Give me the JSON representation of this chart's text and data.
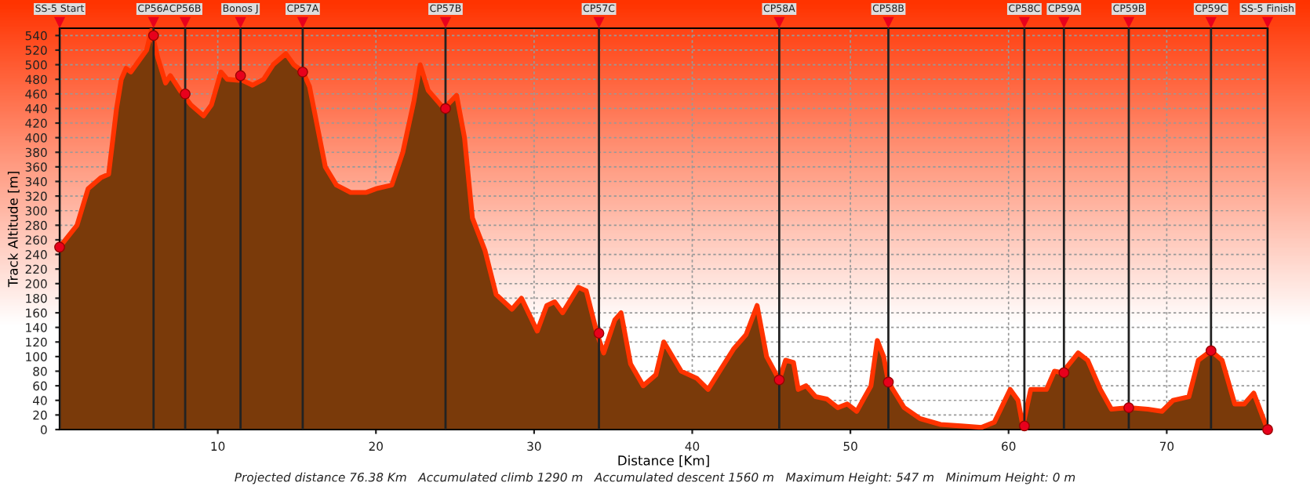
{
  "chart_data": {
    "type": "area",
    "xlabel": "Distance [Km]",
    "ylabel": "Track Altitude [m]",
    "annotations": [
      "Projected distance 76.38 Km   Accumulated climb 1290 m   Accumulated descent 1560 m   Maximum Height: 547 m   Minimum Height: 0 m"
    ],
    "xlim": [
      0,
      76.38
    ],
    "xticks": [
      10,
      20,
      30,
      40,
      50,
      60,
      70
    ],
    "ylim": [
      0,
      550
    ],
    "yticks": [
      0,
      20,
      40,
      60,
      80,
      100,
      120,
      140,
      160,
      180,
      200,
      220,
      240,
      260,
      280,
      300,
      320,
      340,
      360,
      380,
      400,
      420,
      440,
      460,
      480,
      500,
      520,
      540
    ],
    "grid": true,
    "series": [
      {
        "color": "#7a3a0a",
        "x": [
          0,
          1.1,
          1.8,
          2.6,
          3.1,
          3.6,
          3.9,
          4.2,
          4.5,
          5.0,
          5.5,
          5.8,
          6.2,
          6.7,
          7.0,
          7.6,
          8.3,
          9.1,
          9.6,
          10.2,
          10.6,
          11.6,
          12.2,
          12.9,
          13.5,
          14.3,
          14.8,
          15.4,
          15.8,
          16.8,
          17.5,
          18.4,
          19.4,
          20.0,
          21.0,
          21.7,
          22.4,
          22.8,
          23.3,
          24.3,
          25.1,
          25.6,
          26.1,
          26.9,
          27.6,
          28.6,
          29.2,
          30.2,
          30.8,
          31.3,
          31.8,
          32.8,
          33.3,
          34.0,
          34.4,
          35.1,
          35.5,
          36.1,
          36.9,
          37.7,
          38.2,
          39.3,
          40.3,
          41.0,
          42.6,
          43.4,
          44.1,
          44.7,
          45.5,
          45.9,
          46.4,
          46.7,
          47.2,
          47.8,
          48.5,
          49.2,
          49.8,
          50.4,
          51.3,
          51.7,
          52.1,
          52.4,
          53.4,
          54.4,
          55.7,
          57.0,
          58.3,
          59.1,
          60.1,
          60.6,
          60.9,
          61.4,
          62.4,
          62.9,
          63.4,
          64.4,
          65.0,
          65.8,
          66.5,
          67.6,
          68.8,
          69.7,
          70.4,
          71.4,
          72.0,
          72.8,
          73.5,
          74.3,
          74.9,
          75.5,
          76.2,
          76.38
        ],
        "values": [
          250,
          280,
          330,
          345,
          350,
          440,
          480,
          495,
          490,
          505,
          520,
          547,
          510,
          475,
          485,
          465,
          445,
          430,
          445,
          490,
          480,
          478,
          472,
          480,
          500,
          515,
          500,
          490,
          470,
          360,
          335,
          325,
          325,
          330,
          335,
          380,
          450,
          500,
          465,
          440,
          458,
          400,
          290,
          245,
          185,
          165,
          180,
          135,
          170,
          175,
          160,
          195,
          190,
          130,
          105,
          150,
          160,
          90,
          60,
          75,
          120,
          80,
          70,
          55,
          110,
          130,
          170,
          100,
          68,
          95,
          92,
          55,
          60,
          45,
          42,
          30,
          35,
          25,
          60,
          122,
          100,
          65,
          30,
          15,
          7,
          5,
          3,
          10,
          55,
          40,
          5,
          55,
          55,
          80,
          78,
          105,
          95,
          55,
          28,
          30,
          28,
          25,
          40,
          45,
          95,
          108,
          95,
          35,
          35,
          50,
          10,
          0
        ]
      },
      {
        "type": "scatter",
        "color": "#e8001c",
        "marker": "circle",
        "x": [
          0,
          5.94,
          7.94,
          11.44,
          15.37,
          24.4,
          34.1,
          45.5,
          52.4,
          61.0,
          63.5,
          67.6,
          72.8,
          76.38
        ],
        "values": [
          250,
          540,
          460,
          485,
          490,
          440,
          132,
          68,
          65,
          5,
          78,
          30,
          108,
          0
        ]
      }
    ],
    "ref_lines": [
      {
        "axis": "x",
        "value": 0,
        "label": "SS-5 Start"
      },
      {
        "axis": "x",
        "value": 5.94,
        "label": "CP56A"
      },
      {
        "axis": "x",
        "value": 7.94,
        "label": "CP56B"
      },
      {
        "axis": "x",
        "value": 11.44,
        "label": "Bonos J"
      },
      {
        "axis": "x",
        "value": 15.37,
        "label": "CP57A"
      },
      {
        "axis": "x",
        "value": 24.4,
        "label": "CP57B"
      },
      {
        "axis": "x",
        "value": 34.1,
        "label": "CP57C"
      },
      {
        "axis": "x",
        "value": 45.5,
        "label": "CP58A"
      },
      {
        "axis": "x",
        "value": 52.4,
        "label": "CP58B"
      },
      {
        "axis": "x",
        "value": 61.0,
        "label": "CP58C"
      },
      {
        "axis": "x",
        "value": 63.5,
        "label": "CP59A"
      },
      {
        "axis": "x",
        "value": 67.6,
        "label": "CP59B"
      },
      {
        "axis": "x",
        "value": 72.8,
        "label": "CP59C"
      },
      {
        "axis": "x",
        "value": 76.38,
        "label": "SS-5 Finish"
      }
    ]
  }
}
